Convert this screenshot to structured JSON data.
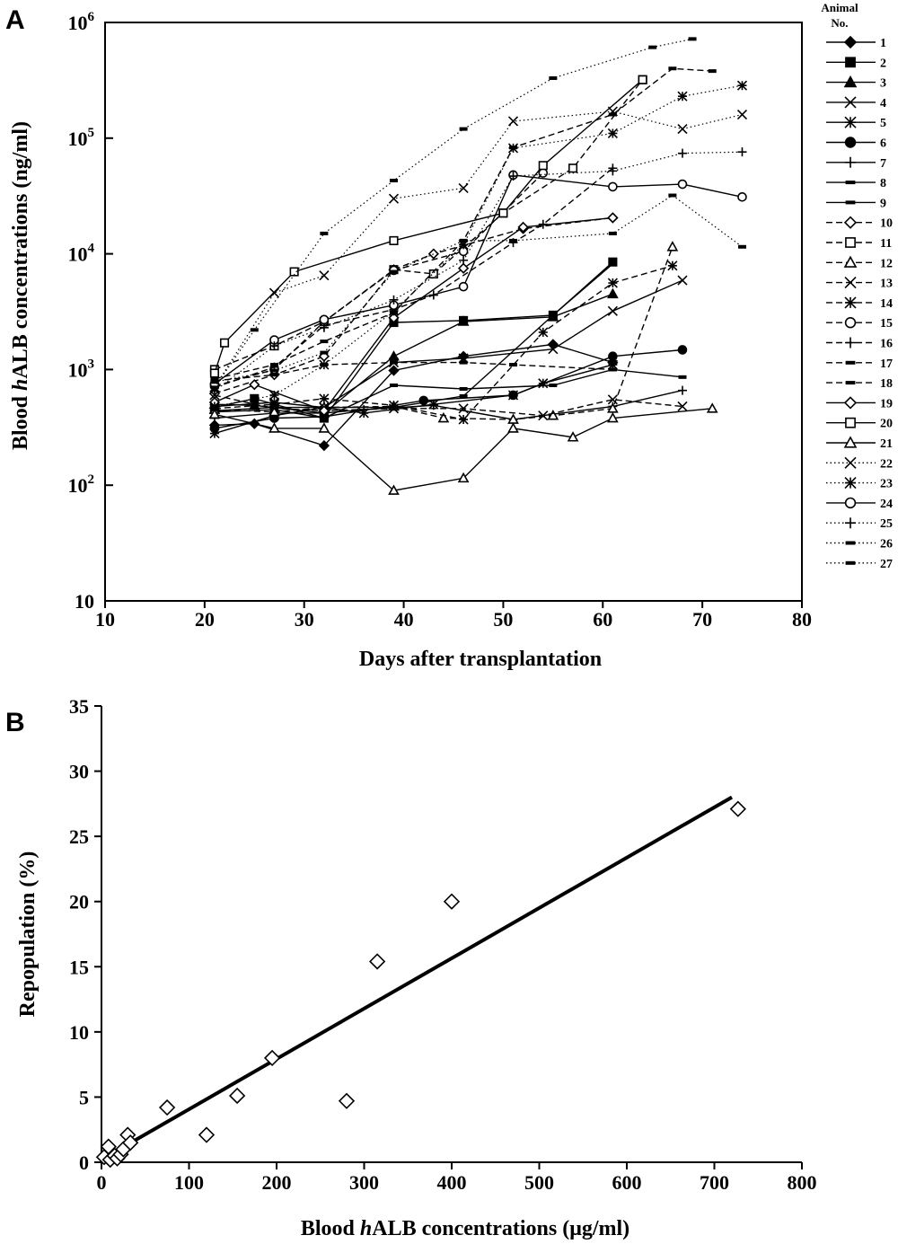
{
  "figure": {
    "panel_a": {
      "letter": "A",
      "ylabel_pre": "Blood ",
      "ylabel_italic": "h",
      "ylabel_post": "ALB concentrations (ng/ml)",
      "xlabel": "Days after transplantation",
      "legend_title_line1": "Animal",
      "legend_title_line2": "No."
    },
    "panel_b": {
      "letter": "B",
      "ylabel": "Repopulation (%)",
      "xlabel_pre": "Blood ",
      "xlabel_italic": "h",
      "xlabel_post": "ALB concentrations (μg/ml)"
    }
  },
  "chart_data": [
    {
      "type": "line",
      "panel": "A",
      "xlabel": "Days after transplantation",
      "ylabel": "Blood hALB concentrations (ng/ml)",
      "xlim": [
        10,
        80
      ],
      "ylim": [
        10,
        1000000
      ],
      "yscale": "log",
      "xticks": [
        10,
        20,
        30,
        40,
        50,
        60,
        70,
        80
      ],
      "yticks": [
        {
          "value": 10,
          "base": "10",
          "exp": ""
        },
        {
          "value": 100,
          "base": "10",
          "exp": "2"
        },
        {
          "value": 1000,
          "base": "10",
          "exp": "3"
        },
        {
          "value": 10000,
          "base": "10",
          "exp": "4"
        },
        {
          "value": 100000,
          "base": "10",
          "exp": "5"
        },
        {
          "value": 1000000,
          "base": "10",
          "exp": "6"
        }
      ],
      "legend_position": "right",
      "series": [
        {
          "name": "1",
          "marker": "diamond",
          "fill": "filled",
          "dash": "solid",
          "x": [
            21,
            25,
            32,
            39,
            46,
            55,
            61
          ],
          "y": [
            330,
            340,
            220,
            980,
            1300,
            1650,
            1150
          ]
        },
        {
          "name": "2",
          "marker": "square",
          "fill": "filled",
          "dash": "solid",
          "x": [
            21,
            25,
            32,
            39,
            46,
            55,
            61
          ],
          "y": [
            470,
            560,
            380,
            2550,
            2650,
            2950,
            8500
          ]
        },
        {
          "name": "3",
          "marker": "triangle",
          "fill": "filled",
          "dash": "solid",
          "x": [
            21,
            25,
            32,
            39,
            46,
            55,
            61
          ],
          "y": [
            500,
            490,
            420,
            1300,
            2600,
            2850,
            4500
          ]
        },
        {
          "name": "4",
          "marker": "x",
          "fill": "none",
          "dash": "solid",
          "x": [
            21,
            27,
            32,
            39,
            46,
            55,
            61,
            68
          ],
          "y": [
            480,
            520,
            470,
            1150,
            1250,
            1500,
            3200,
            5900
          ]
        },
        {
          "name": "5",
          "marker": "star",
          "fill": "none",
          "dash": "solid",
          "x": [
            21,
            27,
            32,
            36,
            43,
            51,
            54,
            61
          ],
          "y": [
            280,
            400,
            470,
            420,
            500,
            600,
            760,
            1100
          ]
        },
        {
          "name": "6",
          "marker": "circle",
          "fill": "filled",
          "dash": "solid",
          "x": [
            21,
            27,
            32,
            42,
            51,
            61,
            68
          ],
          "y": [
            310,
            380,
            390,
            540,
            600,
            1300,
            1480
          ]
        },
        {
          "name": "7",
          "marker": "plus",
          "fill": "none",
          "dash": "solid",
          "x": [
            21,
            27,
            32,
            36,
            43,
            51,
            61,
            68
          ],
          "y": [
            380,
            420,
            420,
            450,
            490,
            370,
            480,
            660
          ]
        },
        {
          "name": "8",
          "marker": "dash",
          "fill": "none",
          "dash": "solid",
          "x": [
            21,
            27,
            32,
            39,
            46,
            55,
            61,
            68
          ],
          "y": [
            430,
            450,
            380,
            730,
            680,
            730,
            1000,
            860
          ]
        },
        {
          "name": "9",
          "marker": "dash",
          "fill": "none",
          "dash": "solid",
          "x": [
            21,
            27,
            32,
            39,
            46,
            55,
            61
          ],
          "y": [
            440,
            470,
            470,
            470,
            590,
            2950,
            8200
          ]
        },
        {
          "name": "10",
          "marker": "diamond",
          "fill": "open",
          "dash": "dashed",
          "x": [
            21,
            27,
            32,
            39,
            43,
            52,
            61
          ],
          "y": [
            620,
            900,
            1300,
            7300,
            10000,
            16500,
            20500
          ]
        },
        {
          "name": "11",
          "marker": "square",
          "fill": "open",
          "dash": "dashed",
          "x": [
            21,
            27,
            32,
            39,
            43,
            50,
            57,
            64
          ],
          "y": [
            1000,
            1600,
            2600,
            7300,
            6700,
            22500,
            55000,
            320000
          ]
        },
        {
          "name": "12",
          "marker": "triangle",
          "fill": "open",
          "dash": "dashed",
          "x": [
            21,
            27,
            32,
            39,
            44,
            51,
            55,
            61,
            67
          ],
          "y": [
            450,
            430,
            470,
            480,
            380,
            370,
            400,
            460,
            11500
          ]
        },
        {
          "name": "13",
          "marker": "x",
          "fill": "none",
          "dash": "dashed",
          "x": [
            21,
            27,
            32,
            39,
            46,
            54,
            61,
            68
          ],
          "y": [
            600,
            460,
            440,
            460,
            460,
            400,
            550,
            480
          ]
        },
        {
          "name": "14",
          "marker": "star",
          "fill": "none",
          "dash": "dashed",
          "x": [
            21,
            27,
            32,
            39,
            46,
            54,
            61,
            67
          ],
          "y": [
            460,
            500,
            560,
            490,
            370,
            2100,
            5600,
            7900
          ]
        },
        {
          "name": "15",
          "marker": "circle",
          "fill": "open",
          "dash": "dashed",
          "x": [
            21,
            27,
            32,
            39,
            46,
            54
          ],
          "y": [
            720,
            1000,
            2600,
            7200,
            10500,
            50000
          ]
        },
        {
          "name": "16",
          "marker": "plus",
          "fill": "none",
          "dash": "dashed",
          "x": [
            21,
            27,
            32,
            39,
            43,
            51,
            54,
            61
          ],
          "y": [
            700,
            1050,
            2400,
            3300,
            4400,
            12500,
            18000,
            55000
          ]
        },
        {
          "name": "17",
          "marker": "dash",
          "fill": "none",
          "dash": "dashed",
          "x": [
            21,
            27,
            32,
            39,
            46,
            51,
            61
          ],
          "y": [
            800,
            900,
            1100,
            1150,
            1150,
            1100,
            1000
          ]
        },
        {
          "name": "18",
          "marker": "dash",
          "fill": "none",
          "dash": "dashed",
          "x": [
            21,
            27,
            32,
            39,
            46,
            51,
            61,
            67,
            71
          ],
          "y": [
            830,
            1100,
            1750,
            3100,
            13000,
            83000,
            160000,
            400000,
            380000
          ]
        },
        {
          "name": "19",
          "marker": "diamond",
          "fill": "open",
          "dash": "solid",
          "x": [
            21,
            25,
            32,
            39,
            46,
            52,
            61
          ],
          "y": [
            520,
            740,
            440,
            2800,
            7500,
            17000,
            20500
          ]
        },
        {
          "name": "20",
          "marker": "square",
          "fill": "open",
          "dash": "solid",
          "x": [
            21,
            22,
            29,
            39,
            50,
            54,
            64
          ],
          "y": [
            930,
            1700,
            7000,
            13000,
            22500,
            58000,
            320000
          ]
        },
        {
          "name": "21",
          "marker": "triangle",
          "fill": "open",
          "dash": "solid",
          "x": [
            21,
            27,
            32,
            39,
            46,
            51,
            57,
            61,
            71
          ],
          "y": [
            410,
            310,
            310,
            90,
            115,
            310,
            260,
            380,
            460
          ]
        },
        {
          "name": "22",
          "marker": "x",
          "fill": "none",
          "dash": "dotted",
          "x": [
            21,
            27,
            32,
            39,
            46,
            51,
            61,
            68,
            74
          ],
          "y": [
            700,
            4600,
            6500,
            30000,
            37000,
            140000,
            170000,
            120000,
            160000
          ]
        },
        {
          "name": "23",
          "marker": "star",
          "fill": "none",
          "dash": "dotted",
          "x": [
            21,
            27,
            32,
            39,
            46,
            51,
            61,
            68,
            74
          ],
          "y": [
            480,
            600,
            1100,
            3200,
            12000,
            82000,
            110000,
            230000,
            285000
          ]
        },
        {
          "name": "24",
          "marker": "circle",
          "fill": "open",
          "dash": "solid",
          "x": [
            21,
            27,
            32,
            39,
            46,
            51,
            61,
            68,
            74
          ],
          "y": [
            750,
            1800,
            2700,
            3600,
            5200,
            48000,
            38000,
            40000,
            31000
          ]
        },
        {
          "name": "25",
          "marker": "plus",
          "fill": "none",
          "dash": "dotted",
          "x": [
            21,
            27,
            32,
            39,
            46,
            51,
            61,
            68,
            74
          ],
          "y": [
            650,
            1600,
            2300,
            4000,
            8800,
            47000,
            52000,
            74000,
            76000
          ]
        },
        {
          "name": "26",
          "marker": "dash",
          "fill": "none",
          "dash": "dotted",
          "x": [
            21,
            27,
            32,
            39,
            46,
            51,
            61,
            67,
            74
          ],
          "y": [
            780,
            980,
            1400,
            7000,
            13000,
            13000,
            15000,
            32000,
            11500
          ]
        },
        {
          "name": "27",
          "marker": "dash",
          "fill": "none",
          "dash": "dotted",
          "x": [
            21,
            25,
            32,
            39,
            46,
            55,
            65,
            69
          ],
          "y": [
            700,
            2200,
            15000,
            43000,
            120000,
            330000,
            610000,
            720000
          ]
        }
      ]
    },
    {
      "type": "scatter",
      "panel": "B",
      "xlabel": "Blood hALB concentrations (μg/ml)",
      "ylabel": "Repopulation (%)",
      "xlim": [
        0,
        800
      ],
      "ylim": [
        0,
        35
      ],
      "xticks": [
        0,
        100,
        200,
        300,
        400,
        500,
        600,
        700,
        800
      ],
      "yticks": [
        0,
        5,
        10,
        15,
        20,
        25,
        30,
        35
      ],
      "points": {
        "x": [
          3,
          8,
          10,
          15,
          18,
          22,
          25,
          30,
          33,
          75,
          120,
          155,
          195,
          280,
          315,
          400,
          727
        ],
        "y": [
          0.4,
          1.2,
          0.2,
          0.5,
          0.3,
          0.6,
          1.0,
          2.1,
          1.5,
          4.2,
          2.1,
          5.1,
          8.0,
          4.7,
          15.4,
          20.0,
          27.1
        ]
      },
      "fit_line": {
        "x": [
          5,
          720
        ],
        "y": [
          0.4,
          28.0
        ]
      }
    }
  ]
}
